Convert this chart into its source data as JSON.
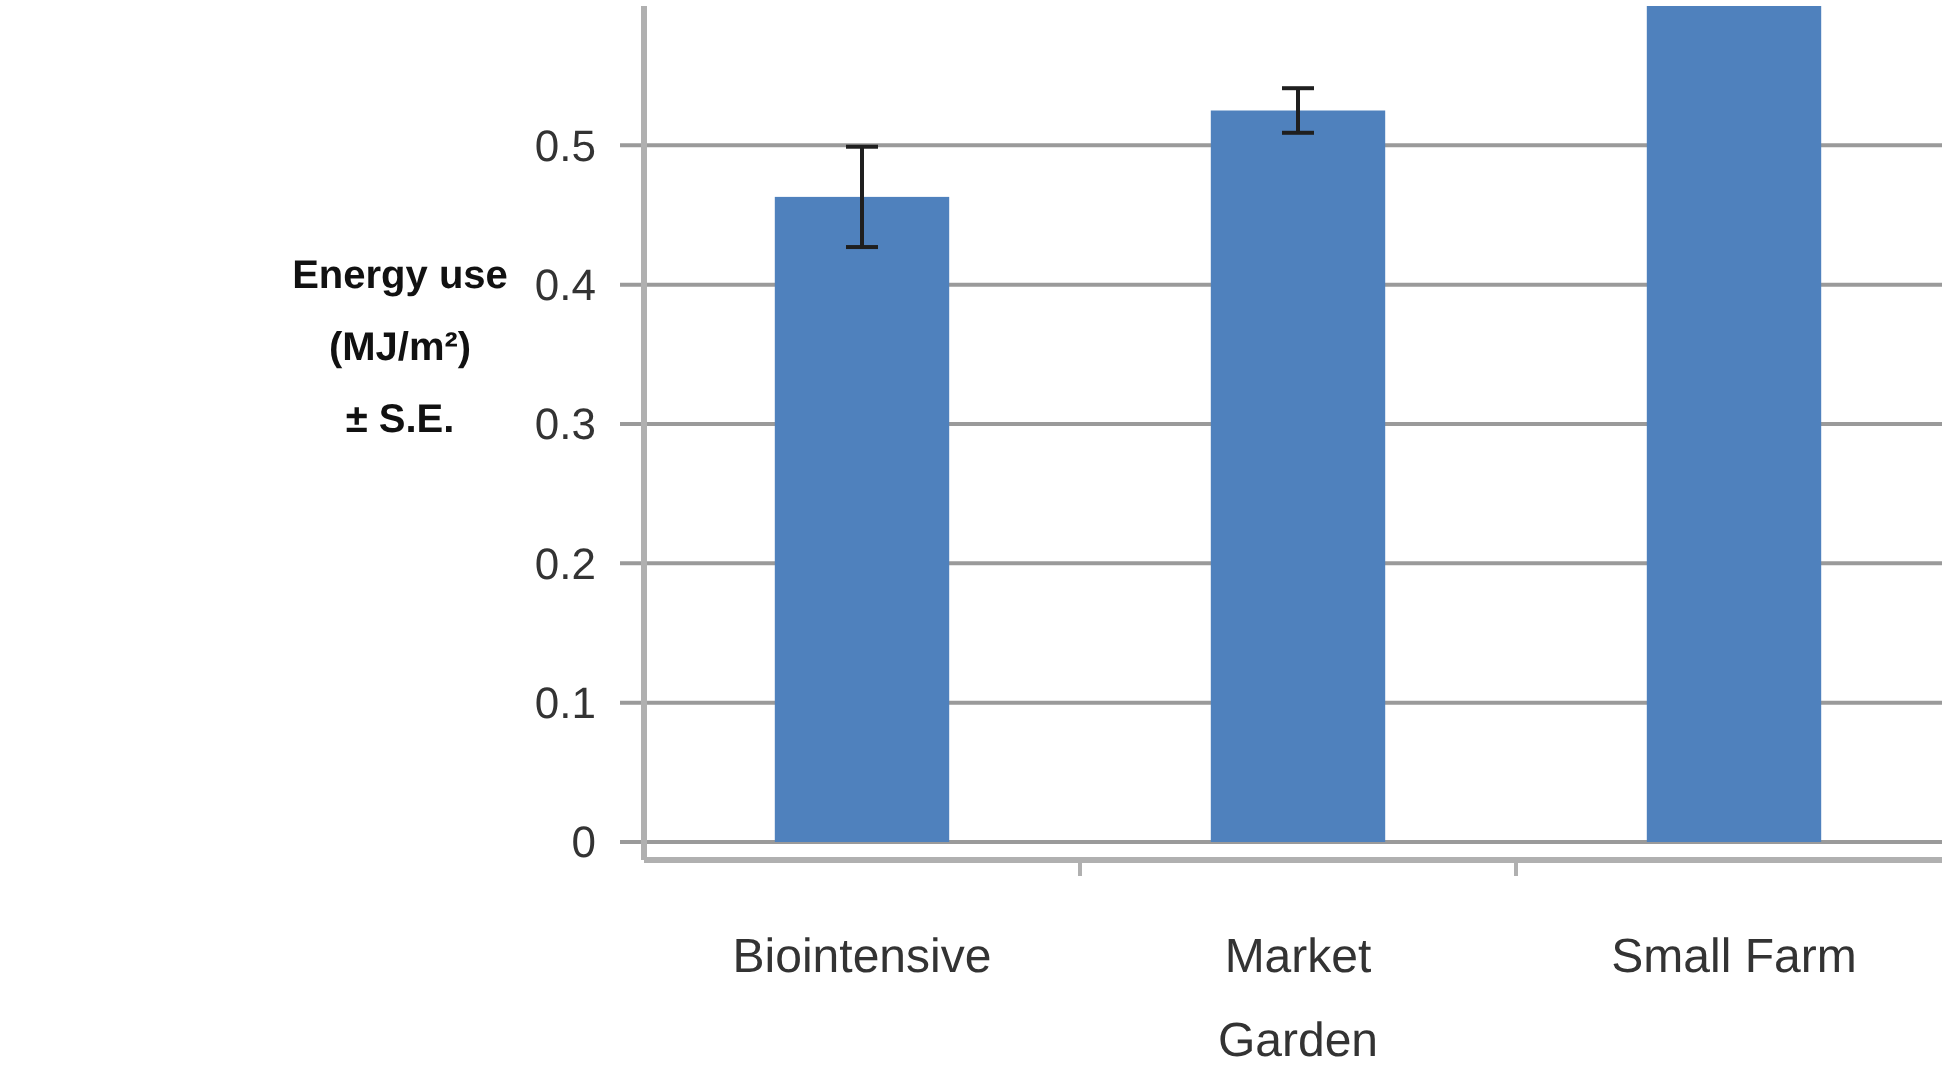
{
  "chart_data": {
    "type": "bar",
    "ylabel": "Energy use\n(MJ/m²)\n± S.E.",
    "categories": [
      "Biointensive",
      "Market\nGarden",
      "Small Farm"
    ],
    "values": [
      0.463,
      0.525,
      0.6
    ],
    "errors": [
      0.036,
      0.016,
      null
    ],
    "color": "#4f81bd",
    "ylim": [
      0,
      0.6
    ],
    "yticks": [
      0,
      0.1,
      0.2,
      0.3,
      0.4,
      0.5
    ],
    "grid": "y"
  }
}
